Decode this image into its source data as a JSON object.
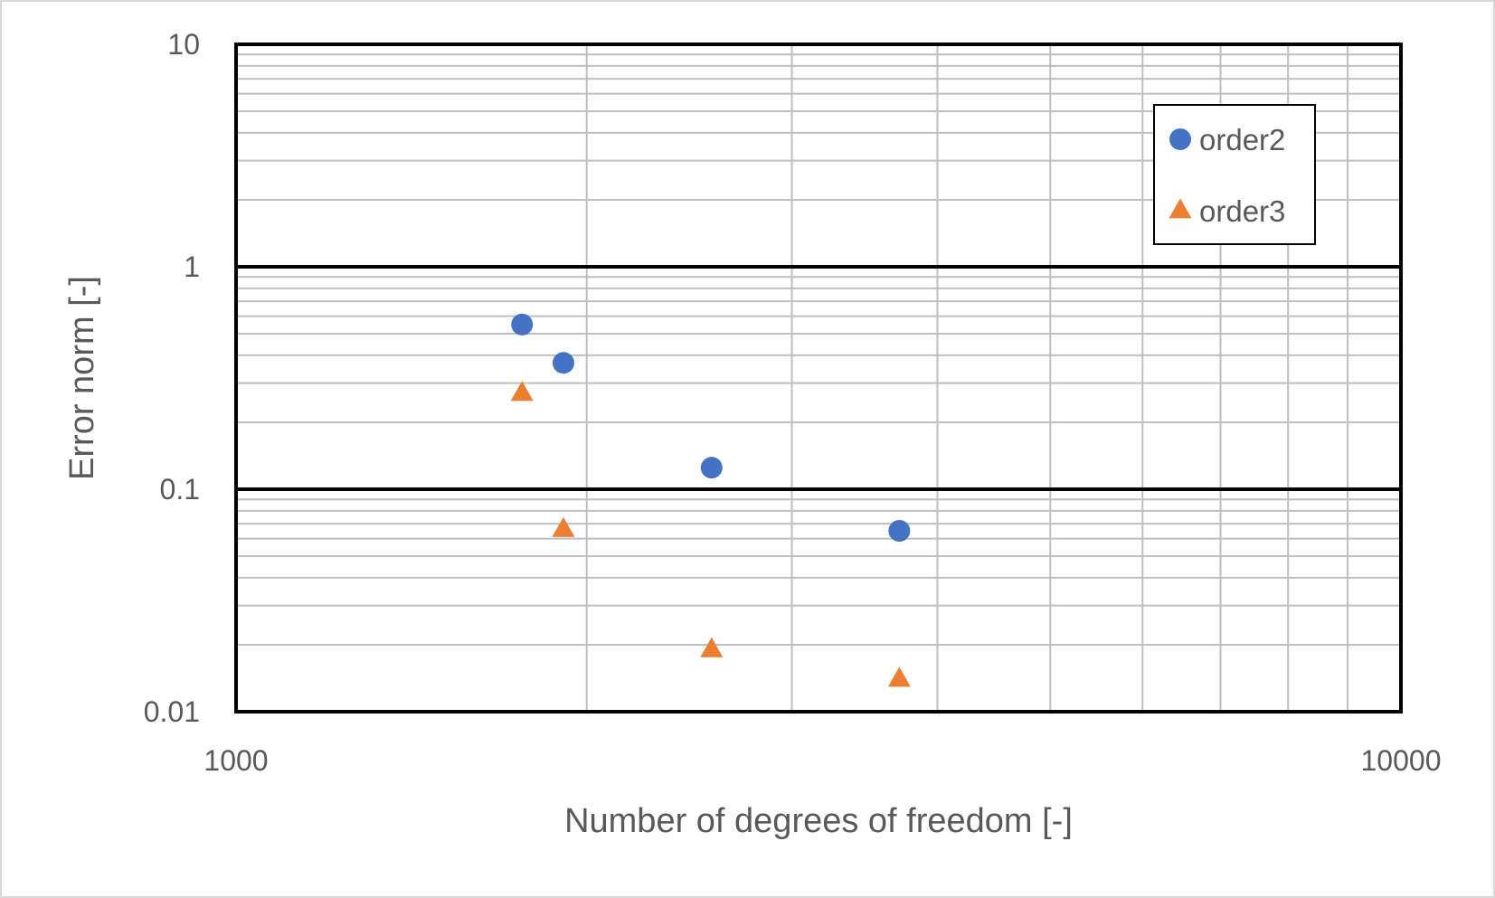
{
  "chart_data": {
    "type": "scatter",
    "title": "",
    "xlabel": "Number of degrees of freedom [-]",
    "ylabel": "Error norm [-]",
    "x_scale": "log",
    "y_scale": "log",
    "xlim": [
      1000,
      10000
    ],
    "ylim": [
      0.01,
      10
    ],
    "x_ticks": [
      1000,
      10000
    ],
    "x_tick_labels": [
      "1000",
      "10000"
    ],
    "y_ticks": [
      0.01,
      0.1,
      1,
      10
    ],
    "y_tick_labels": [
      "0.01",
      "0.1",
      "1",
      "10"
    ],
    "grid": "major and minor",
    "legend_position": "top-right",
    "series": [
      {
        "name": "order2",
        "marker": "circle",
        "color": "#4472C4",
        "x": [
          1760,
          1910,
          2560,
          3710
        ],
        "y": [
          0.55,
          0.37,
          0.125,
          0.065
        ]
      },
      {
        "name": "order3",
        "marker": "triangle",
        "color": "#ED7D31",
        "x": [
          1760,
          1910,
          2560,
          3710
        ],
        "y": [
          0.27,
          0.066,
          0.019,
          0.014
        ]
      }
    ]
  }
}
